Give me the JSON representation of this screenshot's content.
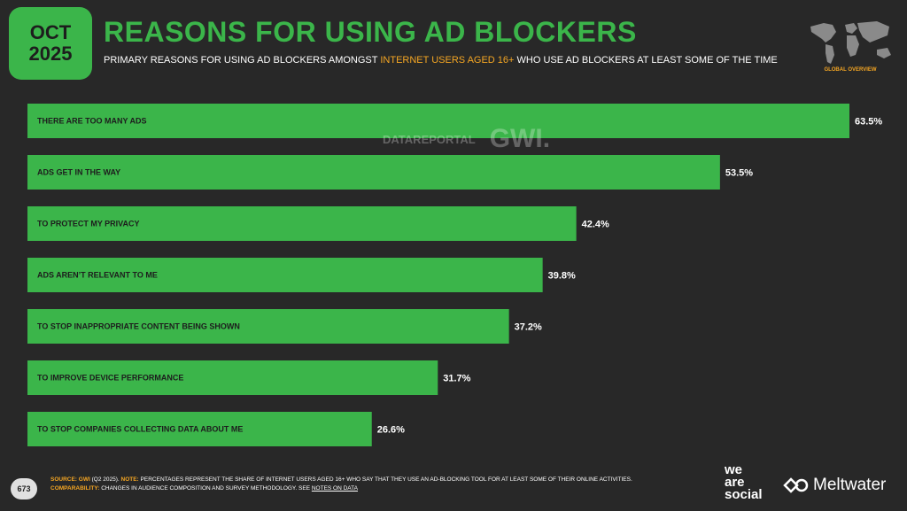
{
  "header": {
    "month": "OCT",
    "year": "2025",
    "title": "REASONS FOR USING AD BLOCKERS",
    "subtitle_pre": "PRIMARY REASONS FOR USING AD BLOCKERS AMONGST",
    "subtitle_highlight": "INTERNET USERS AGED 16+",
    "subtitle_post": "WHO USE AD BLOCKERS AT LEAST SOME OF THE TIME",
    "region": "GLOBAL OVERVIEW"
  },
  "colors": {
    "background": "#282828",
    "accent": "#3bb54a",
    "highlight": "#f5a623",
    "bar_label": "#1d1d1d"
  },
  "watermark": {
    "left": "DATAREPORTAL",
    "right": "GWI."
  },
  "chart_data": {
    "type": "bar",
    "orientation": "horizontal",
    "categories": [
      "THERE ARE TOO MANY ADS",
      "ADS GET IN THE WAY",
      "TO PROTECT MY PRIVACY",
      "ADS AREN’T RELEVANT TO ME",
      "TO STOP INAPPROPRIATE CONTENT BEING SHOWN",
      "TO IMPROVE DEVICE PERFORMANCE",
      "TO STOP COMPANIES COLLECTING DATA ABOUT ME"
    ],
    "values": [
      63.5,
      53.5,
      42.4,
      39.8,
      37.2,
      31.7,
      26.6
    ],
    "value_labels": [
      "63.5%",
      "53.5%",
      "42.4%",
      "39.8%",
      "37.2%",
      "31.7%",
      "26.6%"
    ],
    "xlim": [
      0,
      63.5
    ],
    "grid": false
  },
  "footer": {
    "page": "673",
    "source_label": "SOURCE:",
    "source_org": "GWI",
    "source_period": "(Q2 2025).",
    "note_label": "NOTE:",
    "note_text": "PERCENTAGES REPRESENT THE SHARE OF INTERNET USERS AGED 16+ WHO SAY THAT THEY USE AN AD-BLOCKING TOOL FOR AT LEAST SOME OF THEIR ONLINE ACTIVITIES.",
    "comparability_label": "COMPARABILITY:",
    "comparability_text": "CHANGES IN AUDIENCE COMPOSITION AND SURVEY METHODOLOGY. SEE",
    "notes_link": "NOTES ON DATA",
    "brand1_line1": "we",
    "brand1_line2": "are",
    "brand1_line3": "social",
    "brand2": "Meltwater"
  }
}
